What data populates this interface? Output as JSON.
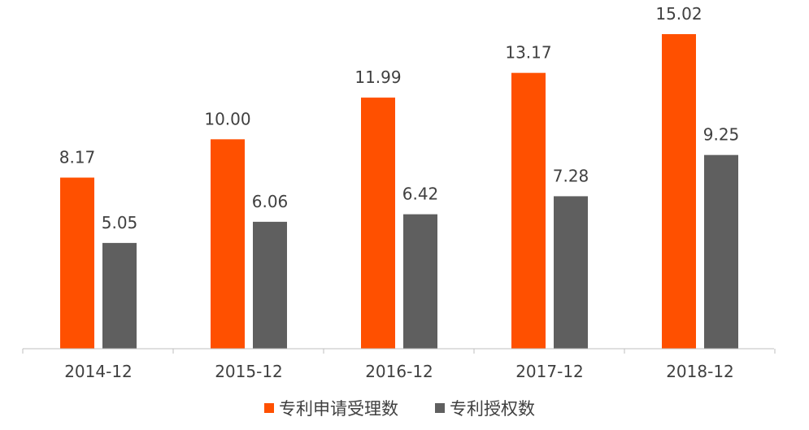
{
  "chart_data": {
    "type": "bar",
    "categories": [
      "2014-12",
      "2015-12",
      "2016-12",
      "2017-12",
      "2018-12"
    ],
    "series": [
      {
        "name": "专利申请受理数",
        "color": "#FF5000",
        "values": [
          8.17,
          10.0,
          11.99,
          13.17,
          15.02
        ],
        "labels": [
          "8.17",
          "10.00",
          "11.99",
          "13.17",
          "15.02"
        ]
      },
      {
        "name": "专利授权数",
        "color": "#5F5F5F",
        "values": [
          5.05,
          6.06,
          6.42,
          7.28,
          9.25
        ],
        "labels": [
          "5.05",
          "6.06",
          "6.42",
          "7.28",
          "9.25"
        ]
      }
    ],
    "ylim": [
      0,
      15.02
    ],
    "grid": false,
    "legend": "bottom-center"
  }
}
